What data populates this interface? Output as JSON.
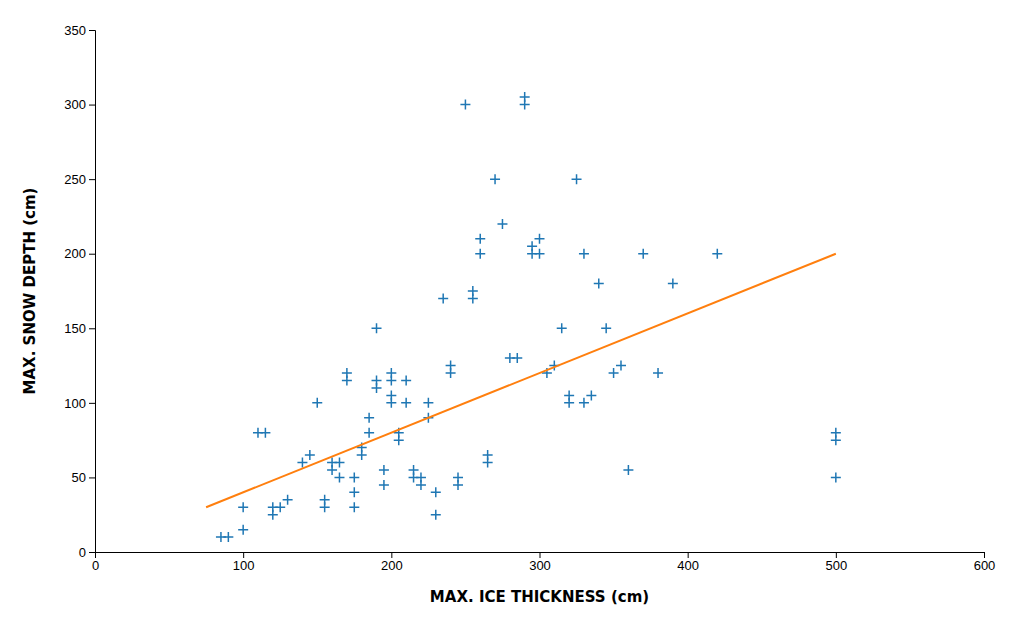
{
  "chart_data": {
    "type": "scatter",
    "xlabel": "MAX. ICE THICKNESS (cm)",
    "ylabel": "MAX. SNOW DEPTH (cm)",
    "xlim": [
      0,
      600
    ],
    "ylim": [
      0,
      350
    ],
    "xticks": [
      0,
      100,
      200,
      300,
      400,
      500,
      600
    ],
    "yticks": [
      0,
      50,
      100,
      150,
      200,
      250,
      300,
      350
    ],
    "series": [
      {
        "type": "scatter",
        "marker": "plus",
        "x": [
          85,
          90,
          100,
          100,
          110,
          115,
          120,
          120,
          125,
          130,
          140,
          145,
          150,
          155,
          155,
          160,
          160,
          165,
          165,
          170,
          170,
          175,
          175,
          175,
          180,
          180,
          185,
          185,
          190,
          190,
          190,
          195,
          195,
          200,
          200,
          200,
          200,
          205,
          205,
          210,
          210,
          215,
          215,
          220,
          220,
          225,
          225,
          230,
          230,
          235,
          240,
          240,
          245,
          245,
          250,
          255,
          255,
          260,
          260,
          265,
          265,
          270,
          275,
          280,
          285,
          290,
          290,
          295,
          295,
          300,
          300,
          305,
          310,
          315,
          320,
          320,
          325,
          330,
          330,
          335,
          340,
          345,
          350,
          355,
          360,
          370,
          380,
          390,
          420,
          500,
          500,
          500
        ],
        "values": [
          10,
          10,
          30,
          15,
          80,
          80,
          25,
          30,
          30,
          35,
          60,
          65,
          100,
          30,
          35,
          55,
          60,
          50,
          60,
          115,
          120,
          30,
          40,
          50,
          65,
          70,
          80,
          90,
          110,
          115,
          150,
          45,
          55,
          100,
          105,
          115,
          120,
          75,
          80,
          100,
          115,
          50,
          55,
          45,
          50,
          90,
          100,
          25,
          40,
          170,
          120,
          125,
          45,
          50,
          300,
          170,
          175,
          200,
          210,
          60,
          65,
          250,
          220,
          130,
          130,
          300,
          305,
          200,
          205,
          200,
          210,
          120,
          125,
          150,
          100,
          105,
          250,
          200,
          100,
          105,
          180,
          150,
          120,
          125,
          55,
          200,
          120,
          180,
          200,
          75,
          80,
          50
        ]
      },
      {
        "type": "line",
        "line_style": "solid",
        "x": [
          75,
          500
        ],
        "values": [
          30,
          200
        ]
      }
    ]
  }
}
